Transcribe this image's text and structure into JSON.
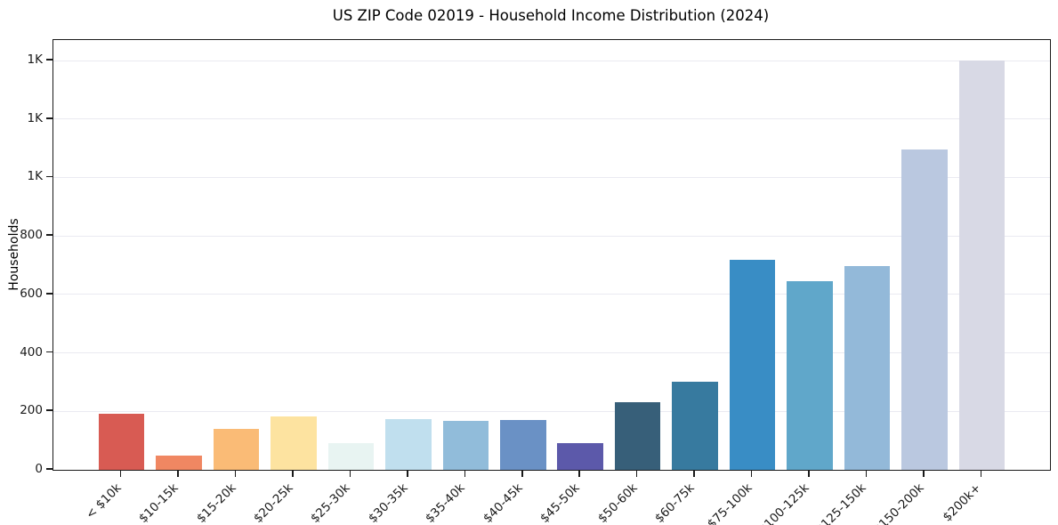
{
  "chart_data": {
    "type": "bar",
    "title": "US ZIP Code 02019 - Household Income Distribution (2024)",
    "xlabel": "",
    "ylabel": "Households",
    "categories": [
      "< $10k",
      "$10-15k",
      "$15-20k",
      "$20-25k",
      "$25-30k",
      "$30-35k",
      "$35-40k",
      "$40-45k",
      "$45-50k",
      "$50-60k",
      "$60-75k",
      "$75-100k",
      "$100-125k",
      "$125-150k",
      "$150-200k",
      "$200k+"
    ],
    "values": [
      193,
      50,
      140,
      183,
      91,
      174,
      168,
      171,
      91,
      230,
      301,
      717,
      644,
      696,
      1097,
      1400
    ],
    "bar_colors": [
      "#d85b53",
      "#f08762",
      "#fabb76",
      "#fde3a0",
      "#e8f4f2",
      "#c0dfee",
      "#91bcda",
      "#6a91c5",
      "#5c59aa",
      "#375f79",
      "#377a9f",
      "#398dc5",
      "#60a7ca",
      "#93b9d9",
      "#bac8e0",
      "#d8d9e5"
    ],
    "ylim": [
      0,
      1470
    ],
    "yticks": [
      {
        "value": 0,
        "label": "0"
      },
      {
        "value": 200,
        "label": "200"
      },
      {
        "value": 400,
        "label": "400"
      },
      {
        "value": 600,
        "label": "600"
      },
      {
        "value": 800,
        "label": "800"
      },
      {
        "value": 1000,
        "label": "1K"
      },
      {
        "value": 1200,
        "label": "1K"
      },
      {
        "value": 1400,
        "label": "1K"
      }
    ],
    "grid": "horizontal",
    "legend": "none",
    "bar_width_ratio": 0.8
  }
}
